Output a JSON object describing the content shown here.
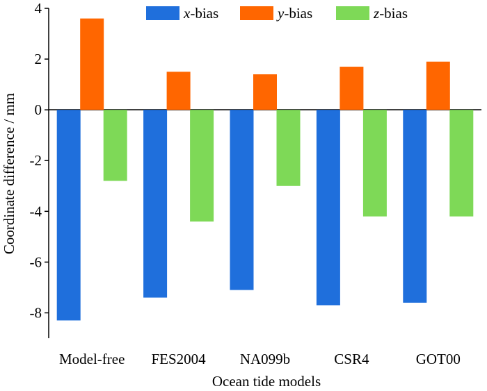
{
  "chart_data": {
    "type": "bar",
    "title": "",
    "xlabel": "Ocean tide models",
    "ylabel": "Coordinate difference / mm",
    "categories": [
      "Model-free",
      "FES2004",
      "NA099b",
      "CSR4",
      "GOT00"
    ],
    "series": [
      {
        "name": "x-bias",
        "var": "x",
        "suffix": "-bias",
        "color": "#1f6fdc",
        "values": [
          -8.3,
          -7.4,
          -7.1,
          -7.7,
          -7.6
        ]
      },
      {
        "name": "y-bias",
        "var": "y",
        "suffix": "-bias",
        "color": "#ff6600",
        "values": [
          3.6,
          1.5,
          1.4,
          1.7,
          1.9
        ]
      },
      {
        "name": "z-bias",
        "var": "z",
        "suffix": "-bias",
        "color": "#7ed957",
        "values": [
          -2.8,
          -4.4,
          -3.0,
          -4.2,
          -4.2
        ]
      }
    ],
    "ylim": [
      -9,
      4
    ],
    "yticks": [
      4,
      2,
      0,
      -2,
      -4,
      -6,
      -8
    ],
    "ytick_labels": [
      "4",
      "2",
      "0",
      "-2",
      "-4",
      "-6",
      "-8"
    ],
    "legend_position": "top",
    "grid": false
  }
}
